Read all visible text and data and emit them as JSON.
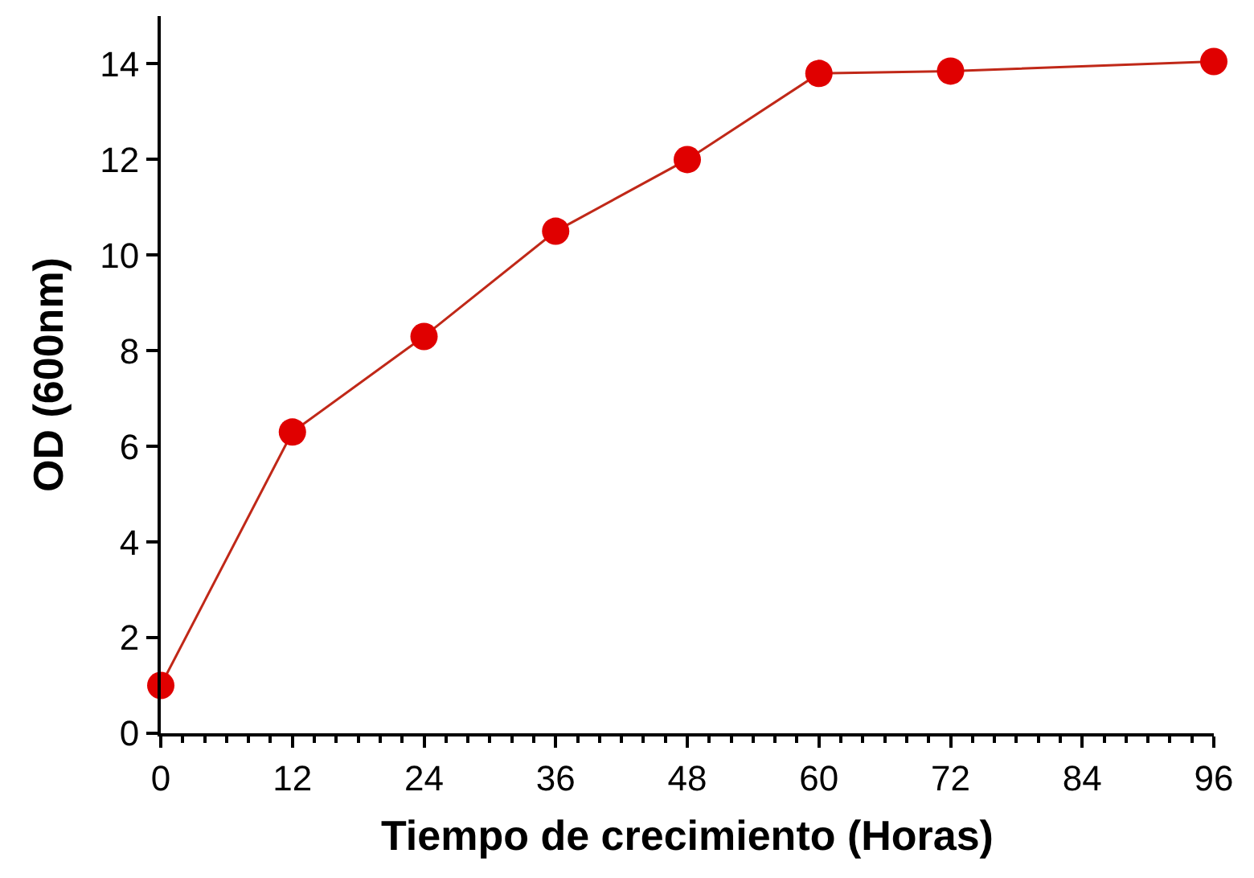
{
  "chart_data": {
    "type": "line",
    "xlabel": "Tiempo de crecimiento (Horas)",
    "ylabel": "OD (600nm)",
    "x": [
      0,
      12,
      24,
      36,
      48,
      60,
      72,
      96
    ],
    "series": [
      {
        "color": "#e00000",
        "values": [
          1.0,
          6.3,
          8.3,
          10.5,
          12.0,
          13.8,
          13.85,
          14.05
        ]
      }
    ],
    "xlim": [
      0,
      96
    ],
    "xticks": [
      0,
      12,
      24,
      36,
      48,
      60,
      72,
      84,
      96
    ],
    "ylim": [
      0,
      15
    ],
    "yticks": [
      0,
      2,
      4,
      6,
      8,
      10,
      12,
      14
    ],
    "marker": "circle",
    "line_style": "solid"
  }
}
